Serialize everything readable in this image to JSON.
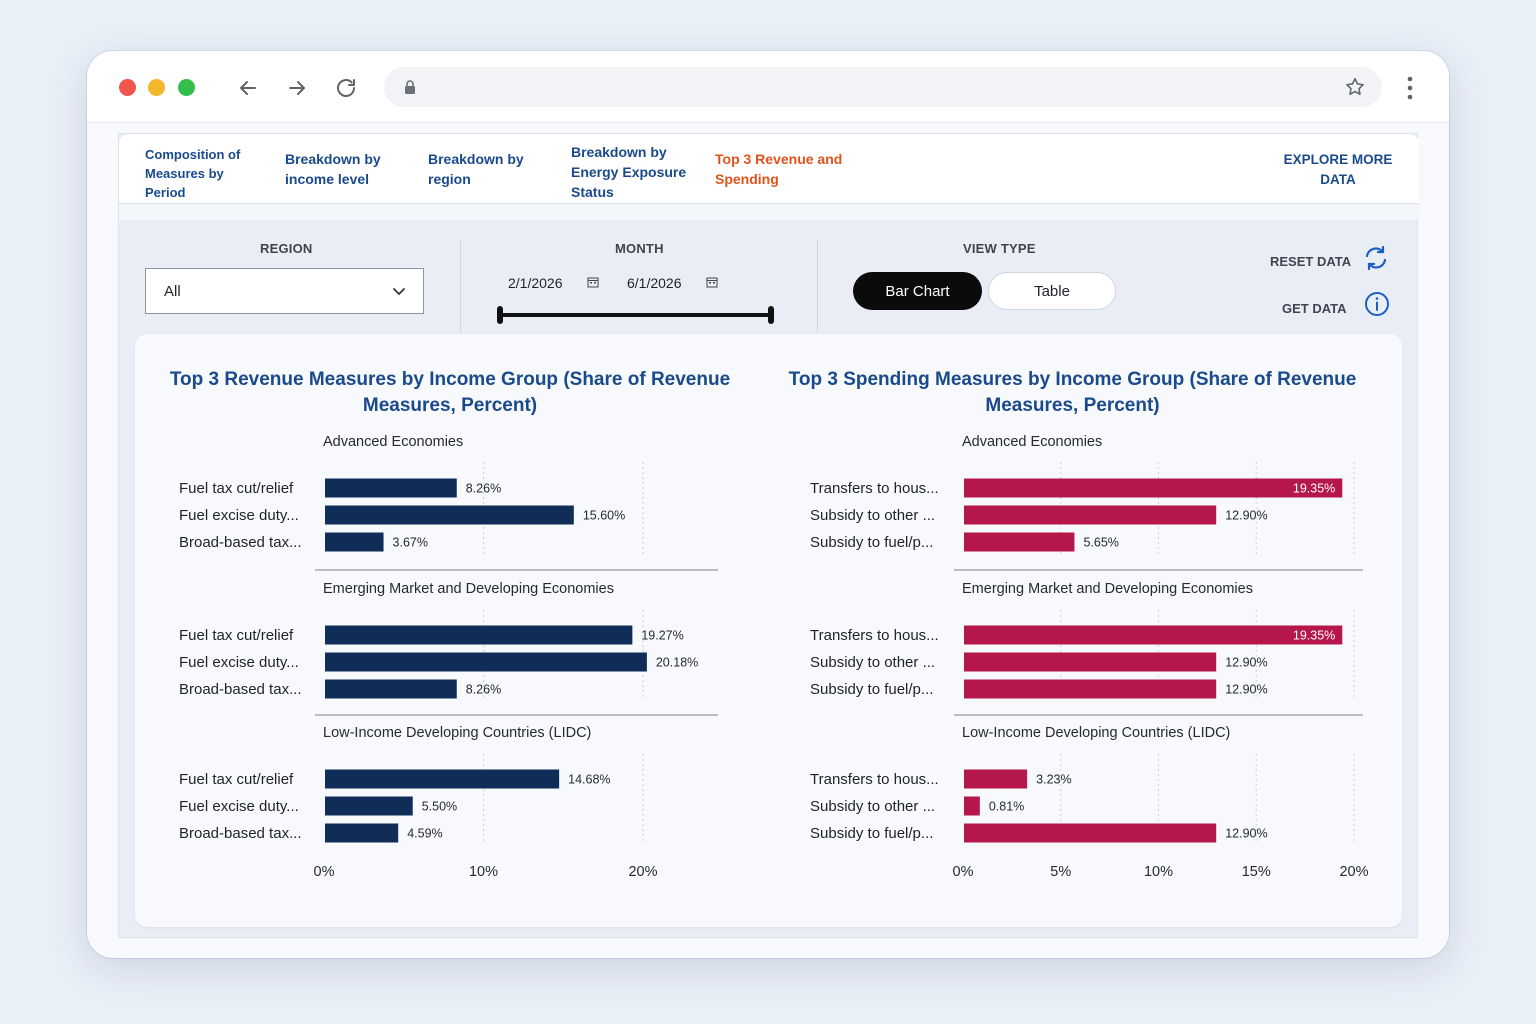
{
  "tabs": [
    {
      "label": "Composition of Measures by Period"
    },
    {
      "label": "Breakdown by income level"
    },
    {
      "label": "Breakdown by region"
    },
    {
      "label": "Breakdown by Energy Exposure Status"
    },
    {
      "label": "Top 3 Revenue and Spending"
    },
    {
      "label": "EXPLORE MORE DATA"
    }
  ],
  "filters": {
    "region_label": "REGION",
    "region_value": "All",
    "month_label": "MONTH",
    "start_date": "2/1/2026",
    "end_date": "6/1/2026",
    "view_type_label": "VIEW TYPE",
    "view_bar": "Bar Chart",
    "view_table": "Table",
    "reset_label": "RESET DATA",
    "get_label": "GET DATA"
  },
  "colors": {
    "revenue": "#0f2d57",
    "spending": "#b5174a",
    "accent_tab": "#e0531a",
    "nav_blue": "#1a4a8c"
  },
  "chart_data": [
    {
      "type": "bar",
      "title": "Top 3 Revenue Measures by Income Group (Share of Revenue Measures, Percent)",
      "xticks": [
        "0%",
        "10%",
        "20%"
      ],
      "xlim": [
        0,
        24
      ],
      "groups": [
        {
          "name": "Advanced Economies",
          "categories": [
            "Fuel tax cut/relief",
            "Fuel excise duty...",
            "Broad-based tax..."
          ],
          "values": [
            8.26,
            15.6,
            3.67
          ],
          "labels": [
            "8.26%",
            "15.60%",
            "3.67%"
          ]
        },
        {
          "name": "Emerging Market and Developing Economies",
          "categories": [
            "Fuel tax cut/relief",
            "Fuel excise duty...",
            "Broad-based tax..."
          ],
          "values": [
            19.27,
            20.18,
            8.26
          ],
          "labels": [
            "19.27%",
            "20.18%",
            "8.26%"
          ]
        },
        {
          "name": "Low-Income Developing Countries (LIDC)",
          "categories": [
            "Fuel tax cut/relief",
            "Fuel excise duty...",
            "Broad-based tax..."
          ],
          "values": [
            14.68,
            5.5,
            4.59
          ],
          "labels": [
            "14.68%",
            "5.50%",
            "4.59%"
          ]
        }
      ]
    },
    {
      "type": "bar",
      "title": "Top 3 Spending Measures by Income Group (Share of Revenue Measures, Percent)",
      "xticks": [
        "0%",
        "5%",
        "10%",
        "15%",
        "20%"
      ],
      "xlim": [
        0,
        20.9
      ],
      "groups": [
        {
          "name": "Advanced Economies",
          "categories": [
            "Transfers to hous...",
            "Subsidy to other ...",
            "Subsidy to fuel/p..."
          ],
          "values": [
            19.35,
            12.9,
            5.65
          ],
          "labels": [
            "19.35%",
            "12.90%",
            "5.65%"
          ]
        },
        {
          "name": "Emerging Market and Developing Economies",
          "categories": [
            "Transfers to hous...",
            "Subsidy to other ...",
            "Subsidy to fuel/p..."
          ],
          "values": [
            19.35,
            12.9,
            12.9
          ],
          "labels": [
            "19.35%",
            "12.90%",
            "12.90%"
          ]
        },
        {
          "name": "Low-Income Developing Countries (LIDC)",
          "categories": [
            "Transfers to hous...",
            "Subsidy to other ...",
            "Subsidy to fuel/p..."
          ],
          "values": [
            3.23,
            0.81,
            12.9
          ],
          "labels": [
            "3.23%",
            "0.81%",
            "12.90%"
          ]
        }
      ]
    }
  ]
}
